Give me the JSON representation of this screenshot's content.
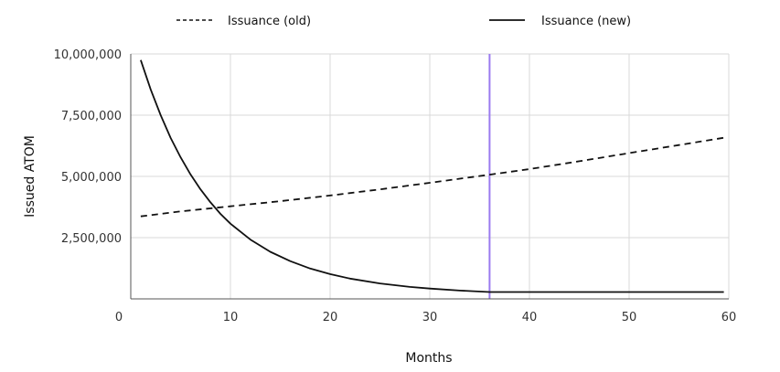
{
  "chart_data": {
    "type": "line",
    "xlabel": "Months",
    "ylabel": "Issued ATOM",
    "xlim": [
      0,
      60
    ],
    "ylim": [
      0,
      10000000
    ],
    "x_ticks": [
      0,
      10,
      20,
      30,
      40,
      50,
      60
    ],
    "x_tick_labels": [
      "0",
      "10",
      "20",
      "30",
      "40",
      "50",
      "60"
    ],
    "y_ticks": [
      2500000,
      5000000,
      7500000,
      10000000
    ],
    "y_tick_labels": [
      "2,500,000",
      "5,000,000",
      "7,500,000",
      "10,000,000"
    ],
    "grid": true,
    "legend_position": "top",
    "vertical_marker": {
      "x": 36,
      "color": "#9b7bf0"
    },
    "series": [
      {
        "name": "Issuance (old)",
        "style": "dashed",
        "color": "#111111",
        "x": [
          1,
          5,
          10,
          15,
          20,
          25,
          30,
          36,
          40,
          45,
          50,
          55,
          59.5
        ],
        "values": [
          3370000,
          3570000,
          3780000,
          3990000,
          4220000,
          4470000,
          4740000,
          5070000,
          5300000,
          5620000,
          5950000,
          6280000,
          6580000
        ]
      },
      {
        "name": "Issuance (new)",
        "style": "solid",
        "color": "#111111",
        "x": [
          1,
          2,
          3,
          4,
          5,
          6,
          7,
          8,
          9,
          10,
          12,
          14,
          16,
          18,
          20,
          22,
          25,
          28,
          30,
          33,
          36,
          40,
          45,
          50,
          55,
          59.5
        ],
        "values": [
          9750000,
          8550000,
          7500000,
          6570000,
          5780000,
          5080000,
          4470000,
          3940000,
          3470000,
          3070000,
          2420000,
          1920000,
          1540000,
          1240000,
          1010000,
          830000,
          630000,
          490000,
          420000,
          340000,
          280000,
          280000,
          280000,
          280000,
          280000,
          280000
        ]
      }
    ]
  }
}
